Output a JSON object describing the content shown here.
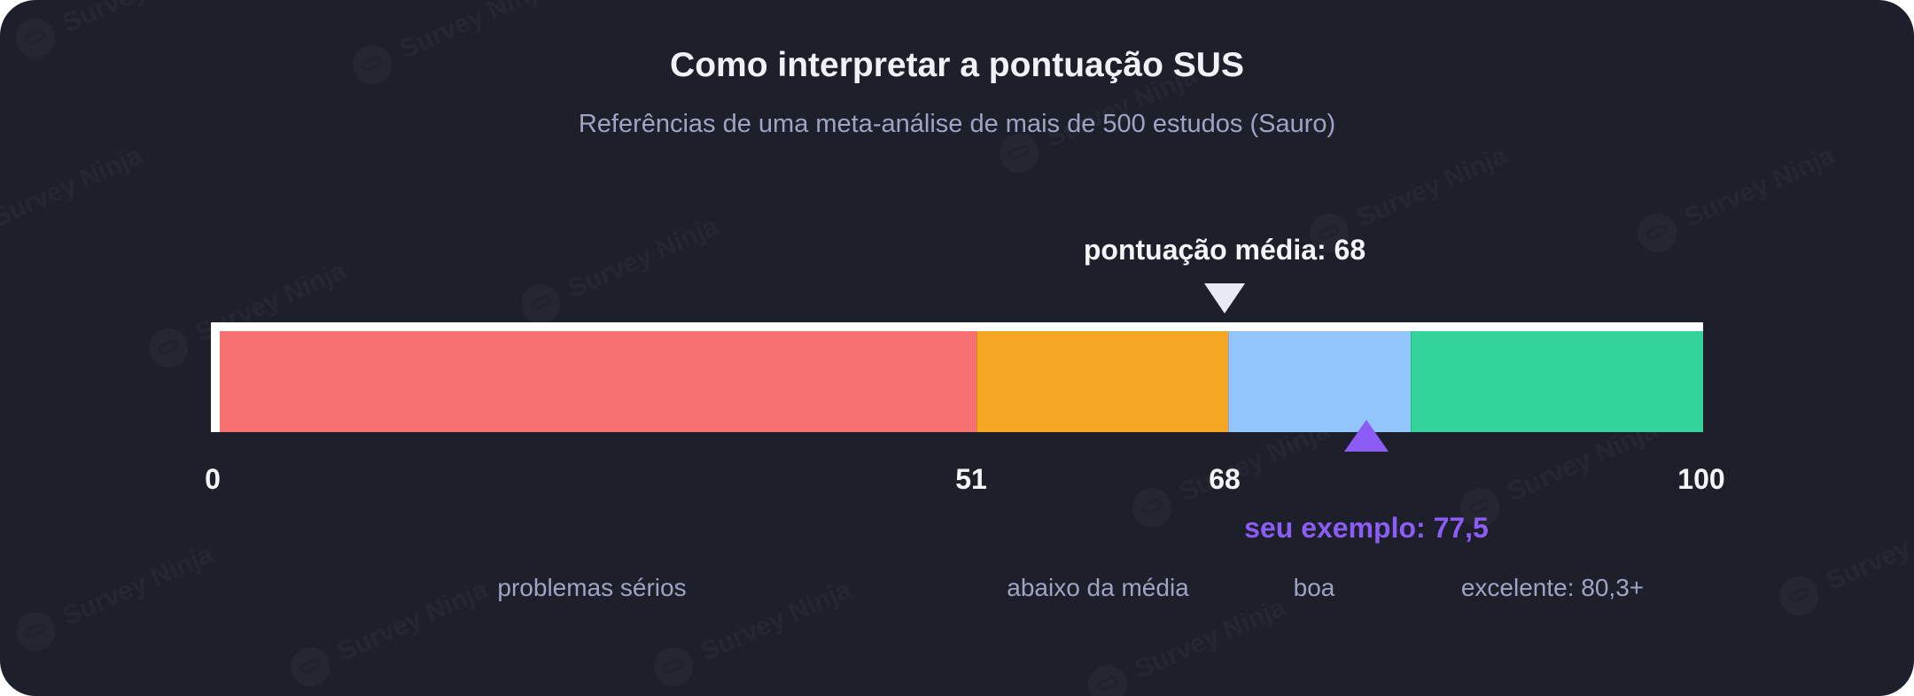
{
  "chart_data": {
    "type": "bar",
    "title": "Como interpretar a pontuação SUS",
    "subtitle": "Referências de uma meta-análise de mais de 500 estudos (Sauro)",
    "xlim": [
      0,
      100
    ],
    "ticks": [
      "0",
      "51",
      "68",
      "100"
    ],
    "segments": [
      {
        "label": "problemas sérios",
        "start": 0,
        "end": 51,
        "color": "#f87171"
      },
      {
        "label": "abaixo da média",
        "start": 51,
        "end": 68,
        "color": "#f5a623"
      },
      {
        "label": "boa",
        "start": 68,
        "end": 80.3,
        "color": "#93c5fd"
      },
      {
        "label": "excelente: 80,3+",
        "start": 80.3,
        "end": 100,
        "color": "#34d399"
      }
    ],
    "average": {
      "value": 68,
      "label": "pontuação média: 68",
      "color": "#e8e9f4"
    },
    "example": {
      "value": 77.5,
      "label": "seu exemplo: 77,5",
      "color": "#8b5cf6"
    }
  },
  "background_color": "#1d1f2b",
  "watermark": {
    "text": "Survey Ninja"
  }
}
